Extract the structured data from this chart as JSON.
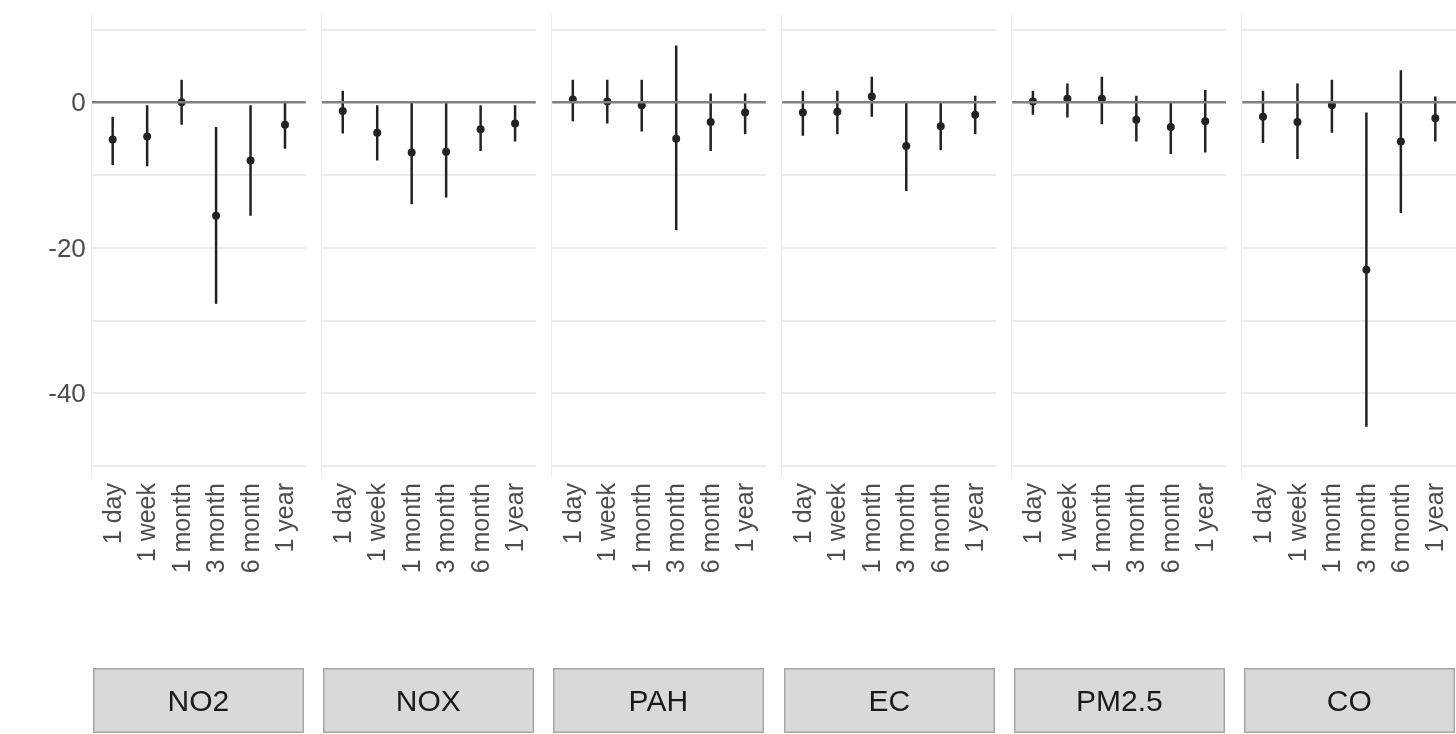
{
  "chart_data": [
    {
      "type": "scatter",
      "title": "NO2",
      "categories": [
        "1 day",
        "1 week",
        "1 month",
        "3 month",
        "6 month",
        "1 year"
      ],
      "values": [
        -5.1,
        -4.7,
        0,
        -15.6,
        -8.0,
        -3.1
      ],
      "errors": [
        [
          -8.6,
          -2.0
        ],
        [
          -8.8,
          -0.4
        ],
        [
          -3.1,
          3.1
        ],
        [
          -27.7,
          -3.4
        ],
        [
          -15.6,
          -0.4
        ],
        [
          -6.4,
          0
        ]
      ],
      "color": "#222222",
      "marker": "circle",
      "ylim": [
        -51.5,
        12
      ],
      "yticks": [
        {
          "value": 10,
          "label": null
        },
        0,
        {
          "value": -10,
          "label": null
        },
        -20,
        {
          "value": -30,
          "label": null
        },
        -40,
        {
          "value": -50,
          "label": null
        }
      ],
      "grid": "y",
      "ref_lines": [
        {
          "axis": "y",
          "value": 0,
          "color": "#808080"
        }
      ]
    },
    {
      "type": "scatter",
      "title": "NOX",
      "categories": [
        "1 day",
        "1 week",
        "1 month",
        "3 month",
        "6 month",
        "1 year"
      ],
      "values": [
        -1.2,
        -4.2,
        -6.9,
        -6.8,
        -3.7,
        -2.9
      ],
      "errors": [
        [
          -4.3,
          1.6
        ],
        [
          -8.0,
          -0.4
        ],
        [
          -14.0,
          0
        ],
        [
          -13.1,
          0
        ],
        [
          -6.7,
          -0.4
        ],
        [
          -5.4,
          -0.4
        ]
      ],
      "color": "#222222",
      "marker": "circle",
      "ylim": [
        -51.5,
        12
      ],
      "yticks": [
        {
          "value": 10,
          "label": null
        },
        0,
        {
          "value": -10,
          "label": null
        },
        -20,
        {
          "value": -30,
          "label": null
        },
        -40,
        {
          "value": -50,
          "label": null
        }
      ],
      "tick_labels": "x",
      "grid": "y",
      "ref_lines": [
        {
          "axis": "y",
          "value": 0,
          "color": "#808080"
        }
      ]
    },
    {
      "type": "scatter",
      "title": "PAH",
      "categories": [
        "1 day",
        "1 week",
        "1 month",
        "3 month",
        "6 month",
        "1 year"
      ],
      "values": [
        0.4,
        0.1,
        -0.4,
        -5.0,
        -2.7,
        -1.4
      ],
      "errors": [
        [
          -2.6,
          3.1
        ],
        [
          -2.9,
          3.1
        ],
        [
          -4.0,
          3.1
        ],
        [
          -17.6,
          7.8
        ],
        [
          -6.7,
          1.2
        ],
        [
          -4.4,
          1.2
        ]
      ],
      "color": "#222222",
      "marker": "circle",
      "ylim": [
        -51.5,
        12
      ],
      "yticks": [
        {
          "value": 10,
          "label": null
        },
        0,
        {
          "value": -10,
          "label": null
        },
        -20,
        {
          "value": -30,
          "label": null
        },
        -40,
        {
          "value": -50,
          "label": null
        }
      ],
      "tick_labels": "x",
      "grid": "y",
      "ref_lines": [
        {
          "axis": "y",
          "value": 0,
          "color": "#808080"
        }
      ]
    },
    {
      "type": "scatter",
      "title": "EC",
      "categories": [
        "1 day",
        "1 week",
        "1 month",
        "3 month",
        "6 month",
        "1 year"
      ],
      "values": [
        -1.4,
        -1.3,
        0.8,
        -6.0,
        -3.3,
        -1.7
      ],
      "errors": [
        [
          -4.6,
          1.6
        ],
        [
          -4.4,
          1.6
        ],
        [
          -2.0,
          3.5
        ],
        [
          -12.2,
          0
        ],
        [
          -6.6,
          0
        ],
        [
          -4.4,
          0.9
        ]
      ],
      "color": "#222222",
      "marker": "circle",
      "ylim": [
        -51.5,
        12
      ],
      "yticks": [
        {
          "value": 10,
          "label": null
        },
        0,
        {
          "value": -10,
          "label": null
        },
        -20,
        {
          "value": -30,
          "label": null
        },
        -40,
        {
          "value": -50,
          "label": null
        }
      ],
      "tick_labels": "x",
      "grid": "y",
      "ref_lines": [
        {
          "axis": "y",
          "value": 0,
          "color": "#808080"
        }
      ]
    },
    {
      "type": "scatter",
      "title": "PM2.5",
      "categories": [
        "1 day",
        "1 week",
        "1 month",
        "3 month",
        "6 month",
        "1 year"
      ],
      "values": [
        0.1,
        0.5,
        0.5,
        -2.4,
        -3.4,
        -2.6
      ],
      "errors": [
        [
          -1.7,
          1.6
        ],
        [
          -2.1,
          2.6
        ],
        [
          -3.0,
          3.5
        ],
        [
          -5.4,
          0.9
        ],
        [
          -7.1,
          0
        ],
        [
          -6.9,
          1.7
        ]
      ],
      "color": "#222222",
      "marker": "circle",
      "ylim": [
        -51.5,
        12
      ],
      "yticks": [
        {
          "value": 10,
          "label": null
        },
        0,
        {
          "value": -10,
          "label": null
        },
        -20,
        {
          "value": -30,
          "label": null
        },
        -40,
        {
          "value": -50,
          "label": null
        }
      ],
      "tick_labels": "x",
      "grid": "y",
      "ref_lines": [
        {
          "axis": "y",
          "value": 0,
          "color": "#808080"
        }
      ]
    },
    {
      "type": "scatter",
      "title": "CO",
      "categories": [
        "1 day",
        "1 week",
        "1 month",
        "3 month",
        "6 month",
        "1 year"
      ],
      "values": [
        -2.0,
        -2.7,
        -0.4,
        -23.0,
        -5.4,
        -2.2
      ],
      "errors": [
        [
          -5.6,
          1.6
        ],
        [
          -7.8,
          2.6
        ],
        [
          -4.2,
          3.1
        ],
        [
          -44.6,
          -1.4
        ],
        [
          -15.2,
          4.4
        ],
        [
          -5.4,
          0.8
        ]
      ],
      "color": "#222222",
      "marker": "circle",
      "ylim": [
        -51.5,
        12
      ],
      "yticks": [
        {
          "value": 10,
          "label": null
        },
        0,
        {
          "value": -10,
          "label": null
        },
        -20,
        {
          "value": -30,
          "label": null
        },
        -40,
        {
          "value": -50,
          "label": null
        }
      ],
      "tick_labels": "x",
      "grid": "y",
      "ref_lines": [
        {
          "axis": "y",
          "value": 0,
          "color": "#808080"
        }
      ]
    }
  ]
}
